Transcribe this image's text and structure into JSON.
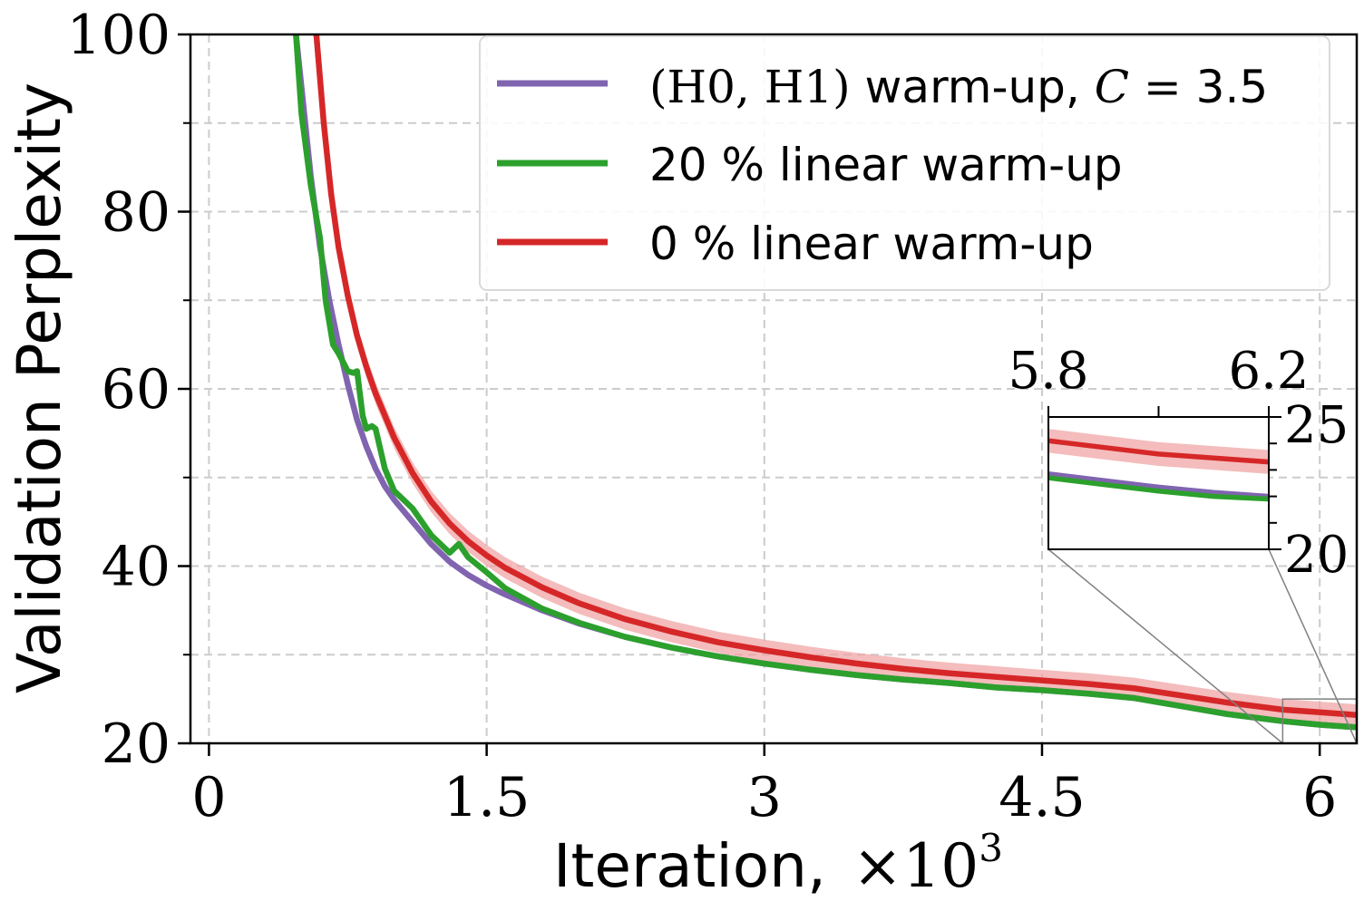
{
  "chart_data": {
    "type": "line",
    "title": "",
    "xlabel": "Iteration, ×10³",
    "xlabel_parts": {
      "text": "Iteration, ",
      "math": "×10",
      "sup": "3"
    },
    "ylabel": "Validation Perplexity",
    "xlim": [
      -0.1,
      6.2
    ],
    "ylim": [
      20,
      100
    ],
    "x_ticks": [
      0,
      1.5,
      3,
      4.5,
      6
    ],
    "x_tick_labels": [
      "0",
      "1.5",
      "3",
      "4.5",
      "6"
    ],
    "y_ticks": [
      20,
      40,
      60,
      80,
      100
    ],
    "y_tick_labels": [
      "20",
      "40",
      "60",
      "80",
      "100"
    ],
    "y_minor_ticks": [
      30,
      50,
      70,
      90
    ],
    "grid": true,
    "legend_position": "top-right",
    "series": [
      {
        "name": "(H0, H1) warm-up, C = 3.5",
        "color": "#8064b0",
        "x": [
          0.47,
          0.5,
          0.55,
          0.6,
          0.65,
          0.7,
          0.75,
          0.8,
          0.85,
          0.9,
          0.95,
          1.0,
          1.1,
          1.2,
          1.3,
          1.4,
          1.5,
          1.6,
          1.8,
          2.0,
          2.25,
          2.5,
          2.75,
          3.0,
          3.25,
          3.5,
          3.75,
          4.0,
          4.25,
          4.5,
          4.75,
          5.0,
          5.25,
          5.5,
          5.8,
          6.0,
          6.2
        ],
        "y": [
          100,
          94,
          84,
          76,
          70,
          65,
          60.5,
          56.5,
          53.5,
          51,
          49,
          47.5,
          45,
          42.5,
          40.5,
          39,
          37.8,
          36.8,
          35,
          33.5,
          32,
          30.8,
          29.8,
          29,
          28.3,
          27.7,
          27.2,
          26.8,
          26.3,
          26,
          25.6,
          25.1,
          24.2,
          23.3,
          22.5,
          22.1,
          21.8
        ]
      },
      {
        "name": "20 % linear warm-up",
        "color": "#2ca02c",
        "x": [
          0.47,
          0.5,
          0.55,
          0.6,
          0.63,
          0.67,
          0.7,
          0.75,
          0.78,
          0.8,
          0.83,
          0.85,
          0.88,
          0.9,
          0.95,
          1.0,
          1.1,
          1.2,
          1.3,
          1.35,
          1.4,
          1.5,
          1.6,
          1.8,
          2.0,
          2.25,
          2.5,
          2.75,
          3.0,
          3.25,
          3.5,
          3.75,
          4.0,
          4.25,
          4.5,
          4.75,
          5.0,
          5.25,
          5.5,
          5.8,
          6.0,
          6.2
        ],
        "y": [
          100,
          91,
          83,
          77,
          70,
          65,
          64,
          62,
          61.8,
          62,
          57,
          55.5,
          55.8,
          55.5,
          51,
          48.5,
          46.5,
          43.5,
          41.5,
          42.5,
          41,
          39.3,
          37.5,
          35.2,
          33.6,
          32,
          30.8,
          29.8,
          29,
          28.3,
          27.7,
          27.2,
          26.8,
          26.3,
          26,
          25.6,
          25.1,
          24.2,
          23.3,
          22.5,
          22.1,
          21.8
        ]
      },
      {
        "name": "0 % linear warm-up",
        "color": "#d62728",
        "band_color": "#f0a0a0",
        "x": [
          0.58,
          0.62,
          0.66,
          0.7,
          0.75,
          0.8,
          0.85,
          0.9,
          0.95,
          1.0,
          1.1,
          1.2,
          1.3,
          1.4,
          1.5,
          1.6,
          1.8,
          2.0,
          2.25,
          2.5,
          2.75,
          3.0,
          3.25,
          3.5,
          3.75,
          4.0,
          4.25,
          4.5,
          4.75,
          5.0,
          5.25,
          5.5,
          5.8,
          6.0,
          6.2
        ],
        "y": [
          100,
          90,
          82,
          76,
          70.5,
          66,
          62.5,
          59.5,
          57,
          54.5,
          50.5,
          47.3,
          44.8,
          42.8,
          41.2,
          39.8,
          37.6,
          35.8,
          34,
          32.6,
          31.4,
          30.5,
          29.7,
          29,
          28.4,
          27.9,
          27.5,
          27.1,
          26.7,
          26.2,
          25.4,
          24.6,
          23.8,
          23.5,
          23.2
        ],
        "band": 1.2
      }
    ],
    "legend": [
      {
        "label_math": "(H0, H1)",
        "label_text": " warm-up, ",
        "label_c": "C",
        "label_eq": " = ",
        "label_val": "3.5"
      },
      {
        "label": "20 % linear warm-up"
      },
      {
        "label": "0 % linear warm-up"
      }
    ],
    "inset": {
      "xlim": [
        5.8,
        6.2
      ],
      "ylim": [
        20,
        25
      ],
      "x_tick_labels": [
        "5.8",
        "6.2"
      ],
      "y_tick_labels": [
        "20",
        "25"
      ],
      "x_ticks": [
        5.8,
        6.0,
        6.2
      ],
      "y_ticks": [
        20,
        21,
        22,
        23,
        24,
        25
      ],
      "series": [
        {
          "name": "0 % linear warm-up",
          "x": [
            5.8,
            5.9,
            6.0,
            6.1,
            6.2
          ],
          "y": [
            24.1,
            23.85,
            23.6,
            23.45,
            23.3
          ],
          "band": 0.45
        },
        {
          "name": "(H0, H1) warm-up, C = 3.5",
          "x": [
            5.8,
            5.9,
            6.0,
            6.1,
            6.2
          ],
          "y": [
            22.85,
            22.6,
            22.35,
            22.15,
            22.0
          ]
        },
        {
          "name": "20 % linear warm-up",
          "x": [
            5.8,
            5.9,
            6.0,
            6.1,
            6.2
          ],
          "y": [
            22.7,
            22.45,
            22.2,
            22.0,
            21.9
          ]
        }
      ]
    }
  }
}
